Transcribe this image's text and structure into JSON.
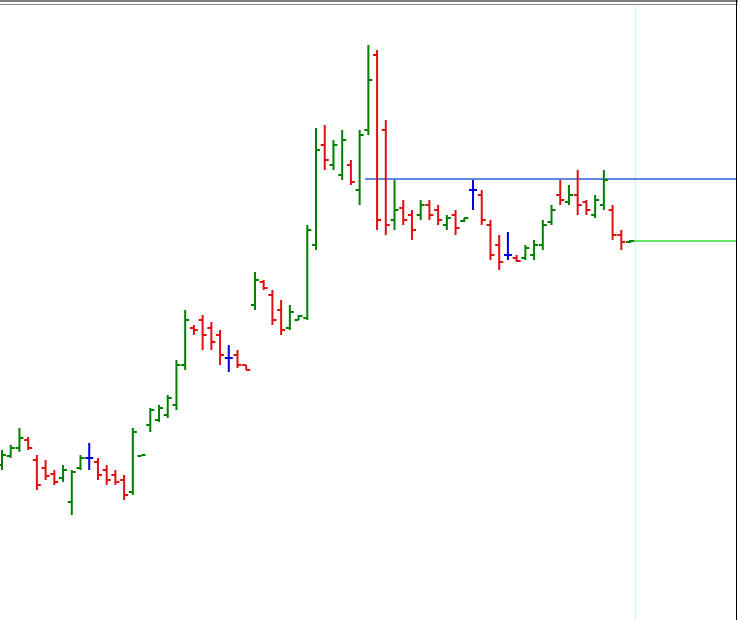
{
  "chart_data": {
    "type": "ohlc",
    "x": [
      0,
      1,
      2,
      3,
      4,
      5,
      6,
      7,
      8,
      9,
      10,
      11,
      12,
      13,
      14,
      15,
      16,
      17,
      18,
      19,
      20,
      21,
      22,
      23,
      24,
      25,
      26,
      27,
      28,
      29,
      30,
      31,
      32,
      33,
      34,
      35,
      36,
      37,
      38,
      39,
      40,
      41,
      42,
      43,
      44,
      45,
      46,
      47,
      48,
      49,
      50,
      51,
      52,
      53,
      54,
      55,
      56,
      57,
      58,
      59,
      60,
      61,
      62,
      63,
      64,
      65,
      66,
      67,
      68,
      69,
      70,
      71,
      72
    ],
    "open": [
      155,
      164,
      172,
      180,
      160,
      152,
      146,
      142,
      118,
      152,
      162,
      158,
      150,
      145,
      140,
      128,
      164,
      195,
      200,
      205,
      215,
      255,
      292,
      300,
      292,
      285,
      262,
      265,
      255,
      315,
      338,
      325,
      310,
      292,
      300,
      302,
      375,
      475,
      455,
      445,
      455,
      430,
      490,
      565,
      490,
      400,
      412,
      405,
      405,
      415,
      410,
      395,
      405,
      399,
      430,
      425,
      395,
      375,
      365,
      362,
      362,
      365,
      375,
      398,
      425,
      418,
      425,
      418,
      405,
      415,
      410,
      385,
      378
    ],
    "high": [
      170,
      175,
      192,
      183,
      165,
      160,
      150,
      155,
      150,
      165,
      177,
      162,
      155,
      150,
      145,
      192,
      165,
      212,
      215,
      225,
      260,
      310,
      295,
      305,
      298,
      290,
      275,
      270,
      255,
      348,
      340,
      330,
      320,
      315,
      305,
      395,
      492,
      495,
      480,
      490,
      460,
      490,
      575,
      570,
      500,
      440,
      420,
      410,
      420,
      420,
      415,
      405,
      410,
      402,
      440,
      430,
      400,
      385,
      388,
      365,
      375,
      380,
      400,
      415,
      440,
      435,
      450,
      420,
      425,
      450,
      415,
      390,
      380
    ],
    "low": [
      150,
      162,
      168,
      170,
      130,
      140,
      135,
      138,
      105,
      150,
      150,
      140,
      135,
      135,
      120,
      125,
      165,
      188,
      198,
      202,
      210,
      250,
      285,
      270,
      270,
      255,
      248,
      252,
      250,
      310,
      330,
      295,
      285,
      290,
      300,
      300,
      370,
      450,
      450,
      440,
      435,
      415,
      485,
      390,
      385,
      390,
      395,
      380,
      400,
      400,
      395,
      390,
      385,
      398,
      410,
      395,
      360,
      350,
      360,
      358,
      360,
      360,
      370,
      395,
      415,
      415,
      405,
      405,
      402,
      410,
      380,
      370,
      377
    ],
    "close": [
      165,
      172,
      182,
      172,
      135,
      144,
      138,
      150,
      148,
      162,
      162,
      145,
      140,
      138,
      125,
      188,
      165,
      210,
      212,
      222,
      255,
      300,
      290,
      285,
      278,
      265,
      262,
      255,
      250,
      340,
      332,
      300,
      290,
      308,
      304,
      390,
      470,
      460,
      475,
      480,
      438,
      485,
      540,
      400,
      395,
      410,
      400,
      390,
      415,
      405,
      400,
      402,
      392,
      402,
      430,
      400,
      365,
      358,
      365,
      359,
      372,
      375,
      395,
      410,
      420,
      425,
      415,
      410,
      420,
      440,
      385,
      378,
      379
    ],
    "up_color": "#008000",
    "down_color": "#e01010",
    "doji_color": "#0000e0",
    "xlim": [
      -0.23,
      84.15
    ],
    "ylim": [
      0,
      620
    ],
    "levels": [
      {
        "value": 441,
        "from": 41.6,
        "color": "#2a5fd8"
      },
      {
        "value": 379,
        "from": 72.3,
        "color": "#33dd33"
      }
    ],
    "cursor": {
      "x": 72.6,
      "color": "#bff4f8"
    }
  }
}
